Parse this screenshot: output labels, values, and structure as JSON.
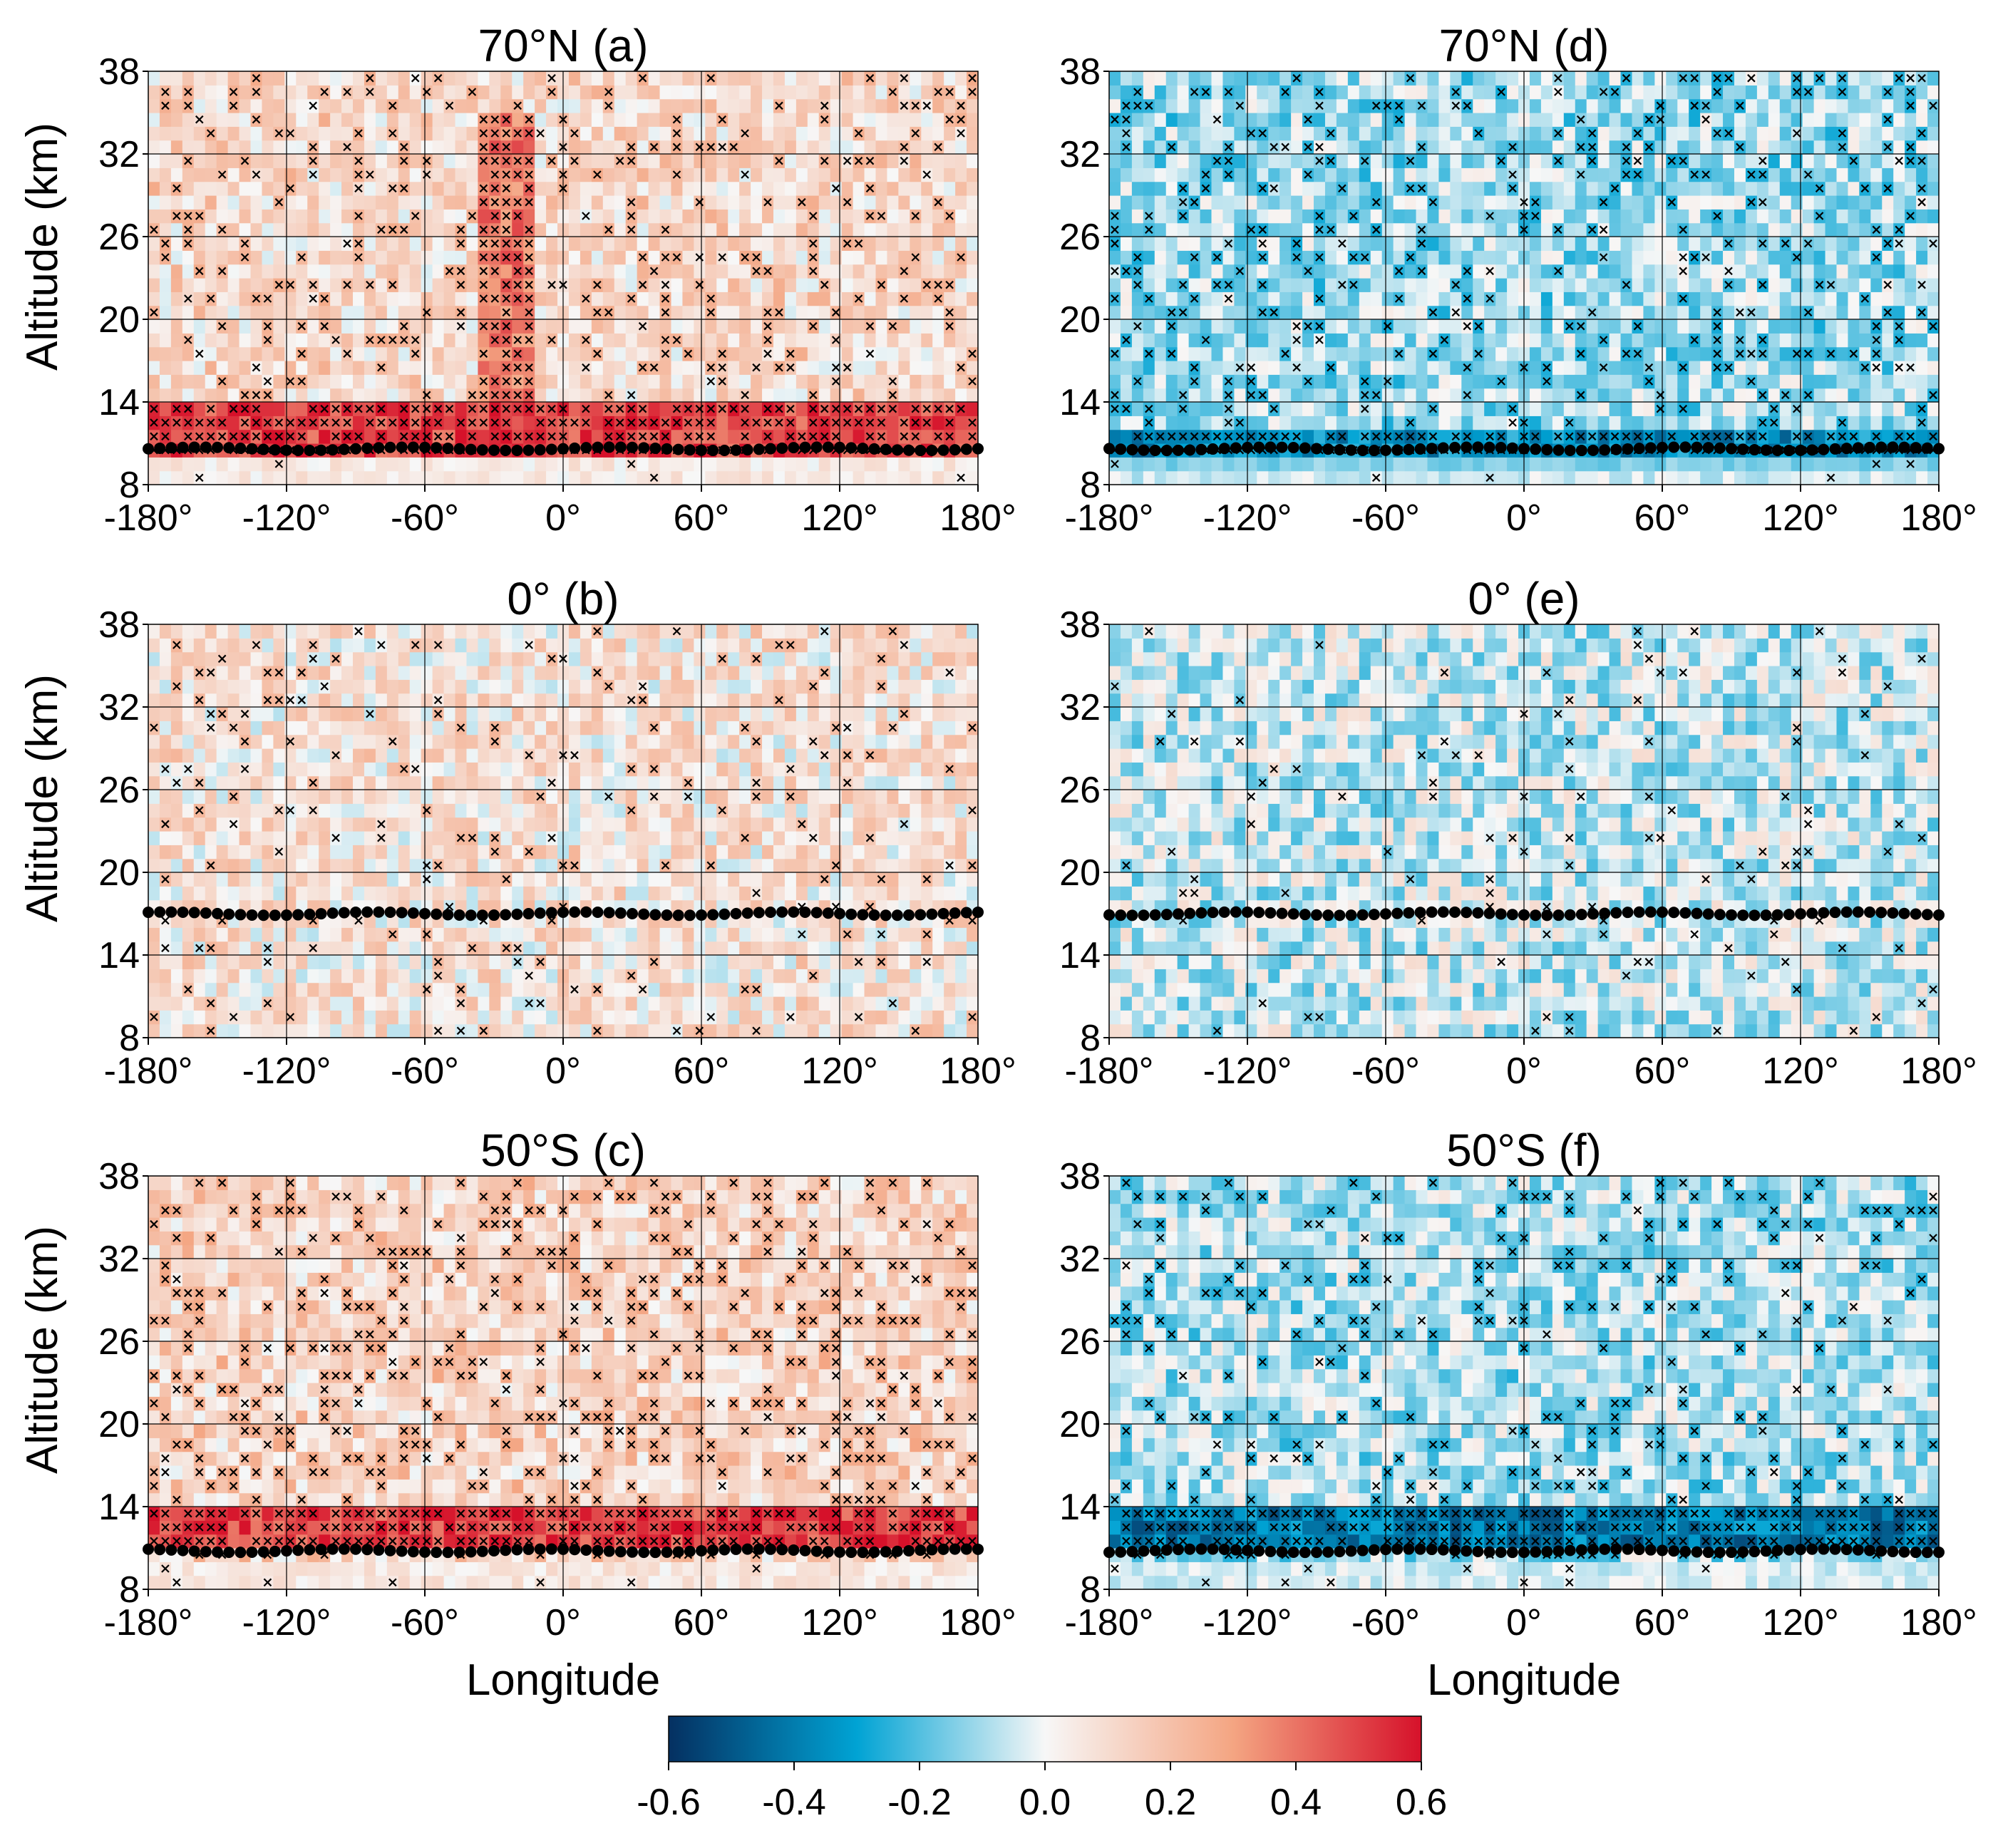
{
  "figure": {
    "x_label": "Longitude",
    "y_label": "Altitude (km)"
  },
  "colorbar": {
    "min": -0.6,
    "max": 0.6,
    "ticks": [
      "-0.6",
      "-0.4",
      "-0.2",
      "0.0",
      "0.2",
      "0.4",
      "0.6"
    ],
    "colors": [
      "#053061",
      "#00a3d4",
      "#f7f7f7",
      "#f4a582",
      "#d6112a"
    ]
  },
  "chart_data": [
    {
      "type": "heatmap",
      "id": "a",
      "title": "70°N (a)",
      "sign": "positive",
      "xlim": [
        -180,
        180
      ],
      "ylim": [
        8,
        38
      ],
      "xticks": [
        "-180°",
        "-120°",
        "-60°",
        "0°",
        "60°",
        "120°",
        "180°"
      ],
      "yticks": [
        "8",
        "14",
        "20",
        "26",
        "32",
        "38"
      ],
      "tropopause_km": 10.6,
      "enhanced_band_km": [
        10.5,
        13.5
      ],
      "enhanced_value": 0.5,
      "hotspots": [
        {
          "lon": -25,
          "alt_from": 14,
          "alt_to": 35,
          "value": 0.45
        }
      ],
      "background_value": 0.12
    },
    {
      "type": "heatmap",
      "id": "b",
      "title": "0° (b)",
      "sign": "positive",
      "xlim": [
        -180,
        180
      ],
      "ylim": [
        8,
        38
      ],
      "xticks": [
        "-180°",
        "-120°",
        "-60°",
        "0°",
        "60°",
        "120°",
        "180°"
      ],
      "yticks": [
        "8",
        "14",
        "20",
        "26",
        "32",
        "38"
      ],
      "tropopause_km": 17.0,
      "background_value": 0.08
    },
    {
      "type": "heatmap",
      "id": "c",
      "title": "50°S (c)",
      "sign": "positive",
      "xlim": [
        -180,
        180
      ],
      "ylim": [
        8,
        38
      ],
      "xticks": [
        "-180°",
        "-120°",
        "-60°",
        "0°",
        "60°",
        "120°",
        "180°"
      ],
      "yticks": [
        "8",
        "14",
        "20",
        "26",
        "32",
        "38"
      ],
      "tropopause_km": 10.8,
      "enhanced_band_km": [
        11,
        13.5
      ],
      "enhanced_value": 0.5,
      "background_value": 0.14
    },
    {
      "type": "heatmap",
      "id": "d",
      "title": "70°N (d)",
      "sign": "negative",
      "xlim": [
        -180,
        180
      ],
      "ylim": [
        8,
        38
      ],
      "xticks": [
        "-180°",
        "-120°",
        "-60°",
        "0°",
        "60°",
        "120°",
        "180°"
      ],
      "yticks": [
        "8",
        "14",
        "20",
        "26",
        "32",
        "38"
      ],
      "tropopause_km": 10.6,
      "enhanced_band_km": [
        9.5,
        12
      ],
      "enhanced_value": -0.35,
      "background_value": -0.12
    },
    {
      "type": "heatmap",
      "id": "e",
      "title": "0° (e)",
      "sign": "negative",
      "xlim": [
        -180,
        180
      ],
      "ylim": [
        8,
        38
      ],
      "xticks": [
        "-180°",
        "-120°",
        "-60°",
        "0°",
        "60°",
        "120°",
        "180°"
      ],
      "yticks": [
        "8",
        "14",
        "20",
        "26",
        "32",
        "38"
      ],
      "tropopause_km": 17.0,
      "background_value": -0.06
    },
    {
      "type": "heatmap",
      "id": "f",
      "title": "50°S (f)",
      "sign": "negative",
      "xlim": [
        -180,
        180
      ],
      "ylim": [
        8,
        38
      ],
      "xticks": [
        "-180°",
        "-120°",
        "-60°",
        "0°",
        "60°",
        "120°",
        "180°"
      ],
      "yticks": [
        "8",
        "14",
        "20",
        "26",
        "32",
        "38"
      ],
      "tropopause_km": 10.8,
      "enhanced_band_km": [
        11,
        13.5
      ],
      "enhanced_value": -0.4,
      "background_value": -0.1
    }
  ]
}
